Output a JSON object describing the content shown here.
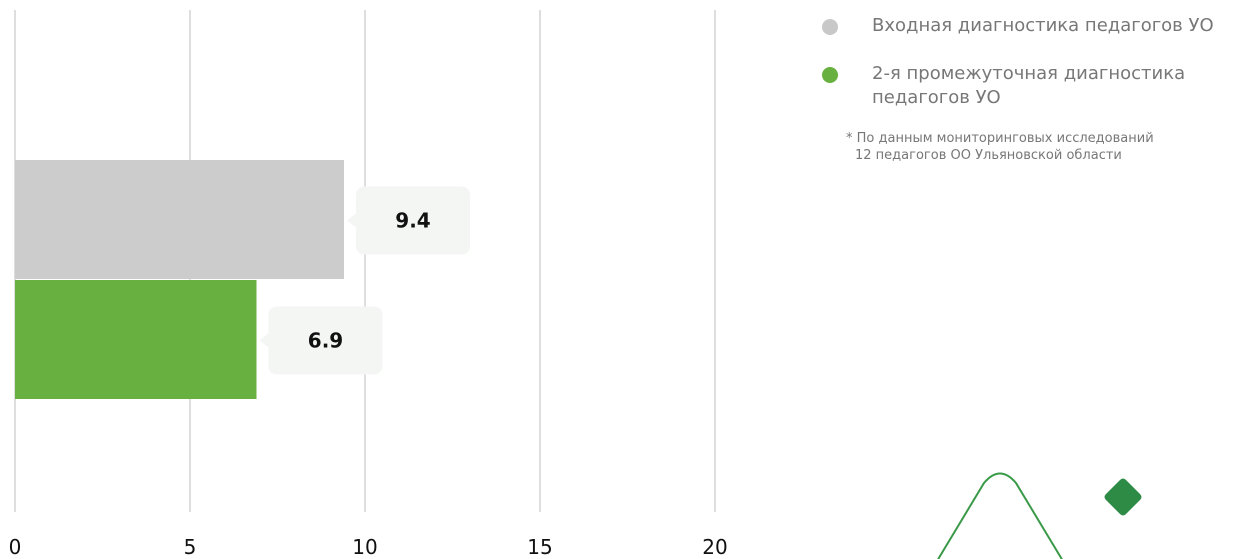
{
  "chart_data": {
    "type": "bar",
    "orientation": "horizontal",
    "x_ticks": [
      "0",
      "5",
      "10",
      "15",
      "20"
    ],
    "xlim": [
      0,
      20
    ],
    "grid": true,
    "legend_position": "top-right",
    "series": [
      {
        "name": "Входная диагностика педагогов УО",
        "value": 9.4,
        "label": "9.4",
        "color": "#cccccc"
      },
      {
        "name": "2-я промежуточная диагностика педагогов УО",
        "value": 6.9,
        "label": "6.9",
        "color": "#68b03f"
      }
    ]
  },
  "legend": {
    "items": [
      {
        "label": "Входная диагностика педагогов УО",
        "color": "#c8c8c8"
      },
      {
        "label": "2-я промежуточная диагностика педагогов УО",
        "color": "#68b03f"
      }
    ]
  },
  "footnote": {
    "line1": "* По данным мониторинговых исследований",
    "line2": "12 педагогов ОО Ульяновской области"
  },
  "decoration": {
    "outline_color": "#3a9a48",
    "diamond_color": "#2e8b45",
    "icons": [
      "diamond-outline-icon",
      "diamond-filled-icon"
    ]
  }
}
